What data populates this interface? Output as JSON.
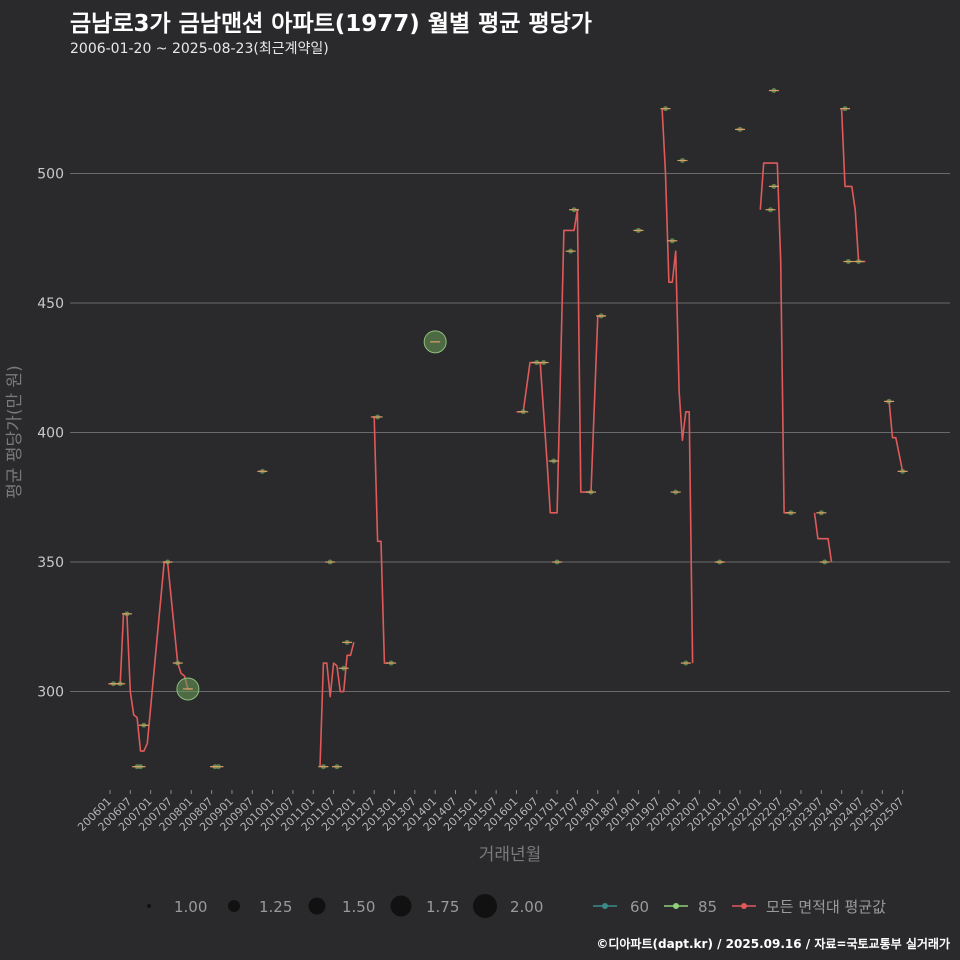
{
  "header": {
    "title": "금남로3가 금남맨션 아파트(1977) 월별 평균 평당가",
    "subtitle": "2006-01-20 ~ 2025-08-23(최근계약일)",
    "caption": "©디아파트(dapt.kr) / 2025.09.16 / 자료=국토교통부 실거래가"
  },
  "colors": {
    "background": "#2a2a2c",
    "grid": "#6a6a6a",
    "avg_line": "#e05a5a",
    "dot_85": "#6a9e5a",
    "dot_60": "#3a8a8a",
    "avg_marker": "#d9a066"
  },
  "chart_data": {
    "type": "line",
    "xlabel": "거래년월",
    "ylabel": "평균 평당가(만 원)",
    "ylim": [
      262,
      538
    ],
    "yticks": [
      300,
      350,
      400,
      450,
      500
    ],
    "x_range": [
      "2006-01",
      "2025-08"
    ],
    "x_ticks": [
      "200601",
      "200607",
      "200701",
      "200707",
      "200801",
      "200807",
      "200901",
      "200907",
      "201001",
      "201007",
      "201101",
      "201107",
      "201201",
      "201207",
      "201301",
      "201307",
      "201401",
      "201407",
      "201501",
      "201507",
      "201601",
      "201607",
      "201701",
      "201707",
      "201801",
      "201807",
      "201901",
      "201907",
      "202001",
      "202007",
      "202101",
      "202107",
      "202201",
      "202207",
      "202301",
      "202307",
      "202401",
      "202407",
      "202501",
      "202507"
    ],
    "legend": {
      "size_title": "",
      "size_values": [
        "1.00",
        "1.25",
        "1.50",
        "1.75",
        "2.00"
      ],
      "series_labels": [
        "60",
        "85",
        "모든 면적대 평균값"
      ]
    },
    "series": [
      {
        "name": "모든 면적대 평균값",
        "segments": [
          [
            [
              "2006-01",
              303
            ],
            [
              "2006-04",
              303
            ],
            [
              "2006-05",
              330
            ],
            [
              "2006-06",
              330
            ],
            [
              "2006-07",
              300
            ],
            [
              "2006-08",
              291
            ],
            [
              "2006-09",
              290
            ],
            [
              "2006-10",
              277
            ],
            [
              "2006-11",
              277
            ],
            [
              "2006-12",
              280
            ],
            [
              "2007-05",
              350
            ],
            [
              "2007-06",
              350
            ],
            [
              "2007-09",
              311
            ],
            [
              "2007-10",
              307
            ],
            [
              "2007-11",
              306
            ],
            [
              "2007-12",
              301
            ],
            [
              "2008-01",
              301
            ]
          ],
          [
            [
              "2008-07",
              271
            ],
            [
              "2008-09",
              271
            ]
          ],
          [
            [
              "2009-09",
              385
            ],
            [
              "2009-11",
              385
            ]
          ],
          [
            [
              "2011-03",
              271
            ],
            [
              "2011-04",
              311
            ],
            [
              "2011-05",
              311
            ],
            [
              "2011-06",
              298
            ],
            [
              "2011-07",
              311
            ],
            [
              "2011-08",
              310
            ],
            [
              "2011-09",
              300
            ],
            [
              "2011-10",
              300
            ],
            [
              "2011-11",
              314
            ],
            [
              "2011-12",
              314
            ],
            [
              "2012-01",
              319
            ]
          ],
          [
            [
              "2012-06",
              406
            ],
            [
              "2012-07",
              406
            ],
            [
              "2012-08",
              358
            ],
            [
              "2012-09",
              358
            ],
            [
              "2012-10",
              311
            ],
            [
              "2012-11",
              311
            ]
          ],
          [
            [
              "2016-01",
              408
            ],
            [
              "2016-03",
              408
            ],
            [
              "2016-05",
              427
            ],
            [
              "2016-08",
              427
            ],
            [
              "2016-10",
              389
            ],
            [
              "2016-11",
              369
            ],
            [
              "2017-01",
              369
            ],
            [
              "2017-03",
              478
            ],
            [
              "2017-06",
              478
            ],
            [
              "2017-07",
              486
            ],
            [
              "2017-08",
              377
            ],
            [
              "2017-11",
              377
            ],
            [
              "2018-01",
              445
            ],
            [
              "2018-03",
              445
            ]
          ],
          [
            [
              "2018-12",
              478
            ],
            [
              "2019-02",
              478
            ]
          ],
          [
            [
              "2019-08",
              525
            ],
            [
              "2019-09",
              500
            ],
            [
              "2019-10",
              458
            ],
            [
              "2019-11",
              458
            ],
            [
              "2019-12",
              470
            ],
            [
              "2020-01",
              416
            ],
            [
              "2020-02",
              397
            ],
            [
              "2020-03",
              408
            ],
            [
              "2020-04",
              408
            ],
            [
              "2020-05",
              311
            ]
          ],
          [
            [
              "2020-12",
              350
            ],
            [
              "2021-02",
              350
            ]
          ],
          [
            [
              "2021-06",
              517
            ],
            [
              "2021-08",
              517
            ]
          ],
          [
            [
              "2022-01",
              486
            ],
            [
              "2022-02",
              504
            ],
            [
              "2022-06",
              504
            ],
            [
              "2022-07",
              466
            ],
            [
              "2022-08",
              369
            ],
            [
              "2022-10",
              369
            ]
          ],
          [
            [
              "2023-05",
              369
            ],
            [
              "2023-06",
              359
            ],
            [
              "2023-09",
              359
            ],
            [
              "2023-10",
              350
            ]
          ],
          [
            [
              "2024-01",
              525
            ],
            [
              "2024-02",
              495
            ],
            [
              "2024-04",
              495
            ],
            [
              "2024-05",
              486
            ],
            [
              "2024-06",
              466
            ],
            [
              "2024-08",
              466
            ]
          ],
          [
            [
              "2025-02",
              412
            ],
            [
              "2025-03",
              412
            ],
            [
              "2025-04",
              398
            ],
            [
              "2025-05",
              398
            ],
            [
              "2025-07",
              385
            ]
          ]
        ]
      },
      {
        "name": "85",
        "points": [
          [
            "2006-02",
            303,
            1
          ],
          [
            "2006-04",
            303,
            1
          ],
          [
            "2006-06",
            330,
            1
          ],
          [
            "2006-09",
            271,
            1
          ],
          [
            "2006-10",
            271,
            1
          ],
          [
            "2006-11",
            287,
            1
          ],
          [
            "2007-06",
            350,
            1
          ],
          [
            "2007-09",
            311,
            1
          ],
          [
            "2007-12",
            301,
            2
          ],
          [
            "2008-08",
            271,
            1
          ],
          [
            "2008-09",
            271,
            1
          ],
          [
            "2009-10",
            385,
            1
          ],
          [
            "2011-04",
            271,
            1
          ],
          [
            "2011-06",
            350,
            1
          ],
          [
            "2011-08",
            271,
            1
          ],
          [
            "2011-10",
            309,
            1
          ],
          [
            "2011-11",
            319,
            1
          ],
          [
            "2012-08",
            406,
            1
          ],
          [
            "2012-12",
            311,
            1
          ],
          [
            "2014-01",
            435,
            2
          ],
          [
            "2016-03",
            408,
            1
          ],
          [
            "2016-07",
            427,
            1
          ],
          [
            "2016-09",
            427,
            1
          ],
          [
            "2016-12",
            389,
            1
          ],
          [
            "2017-01",
            350,
            1
          ],
          [
            "2017-05",
            470,
            1
          ],
          [
            "2017-06",
            486,
            1
          ],
          [
            "2017-11",
            377,
            1
          ],
          [
            "2018-02",
            445,
            1
          ],
          [
            "2019-01",
            478,
            1
          ],
          [
            "2019-09",
            525,
            1
          ],
          [
            "2019-11",
            474,
            1
          ],
          [
            "2019-12",
            377,
            1
          ],
          [
            "2020-02",
            505,
            1
          ],
          [
            "2020-03",
            311,
            1
          ],
          [
            "2021-01",
            350,
            1
          ],
          [
            "2021-07",
            517,
            1
          ],
          [
            "2022-04",
            486,
            1
          ],
          [
            "2022-05",
            532,
            1
          ],
          [
            "2022-05",
            495,
            1
          ],
          [
            "2022-10",
            369,
            1
          ],
          [
            "2023-07",
            369,
            1
          ],
          [
            "2023-08",
            350,
            1
          ],
          [
            "2024-02",
            525,
            1
          ],
          [
            "2024-03",
            466,
            1
          ],
          [
            "2024-06",
            466,
            1
          ],
          [
            "2025-03",
            412,
            1
          ],
          [
            "2025-07",
            385,
            1
          ]
        ]
      }
    ]
  }
}
